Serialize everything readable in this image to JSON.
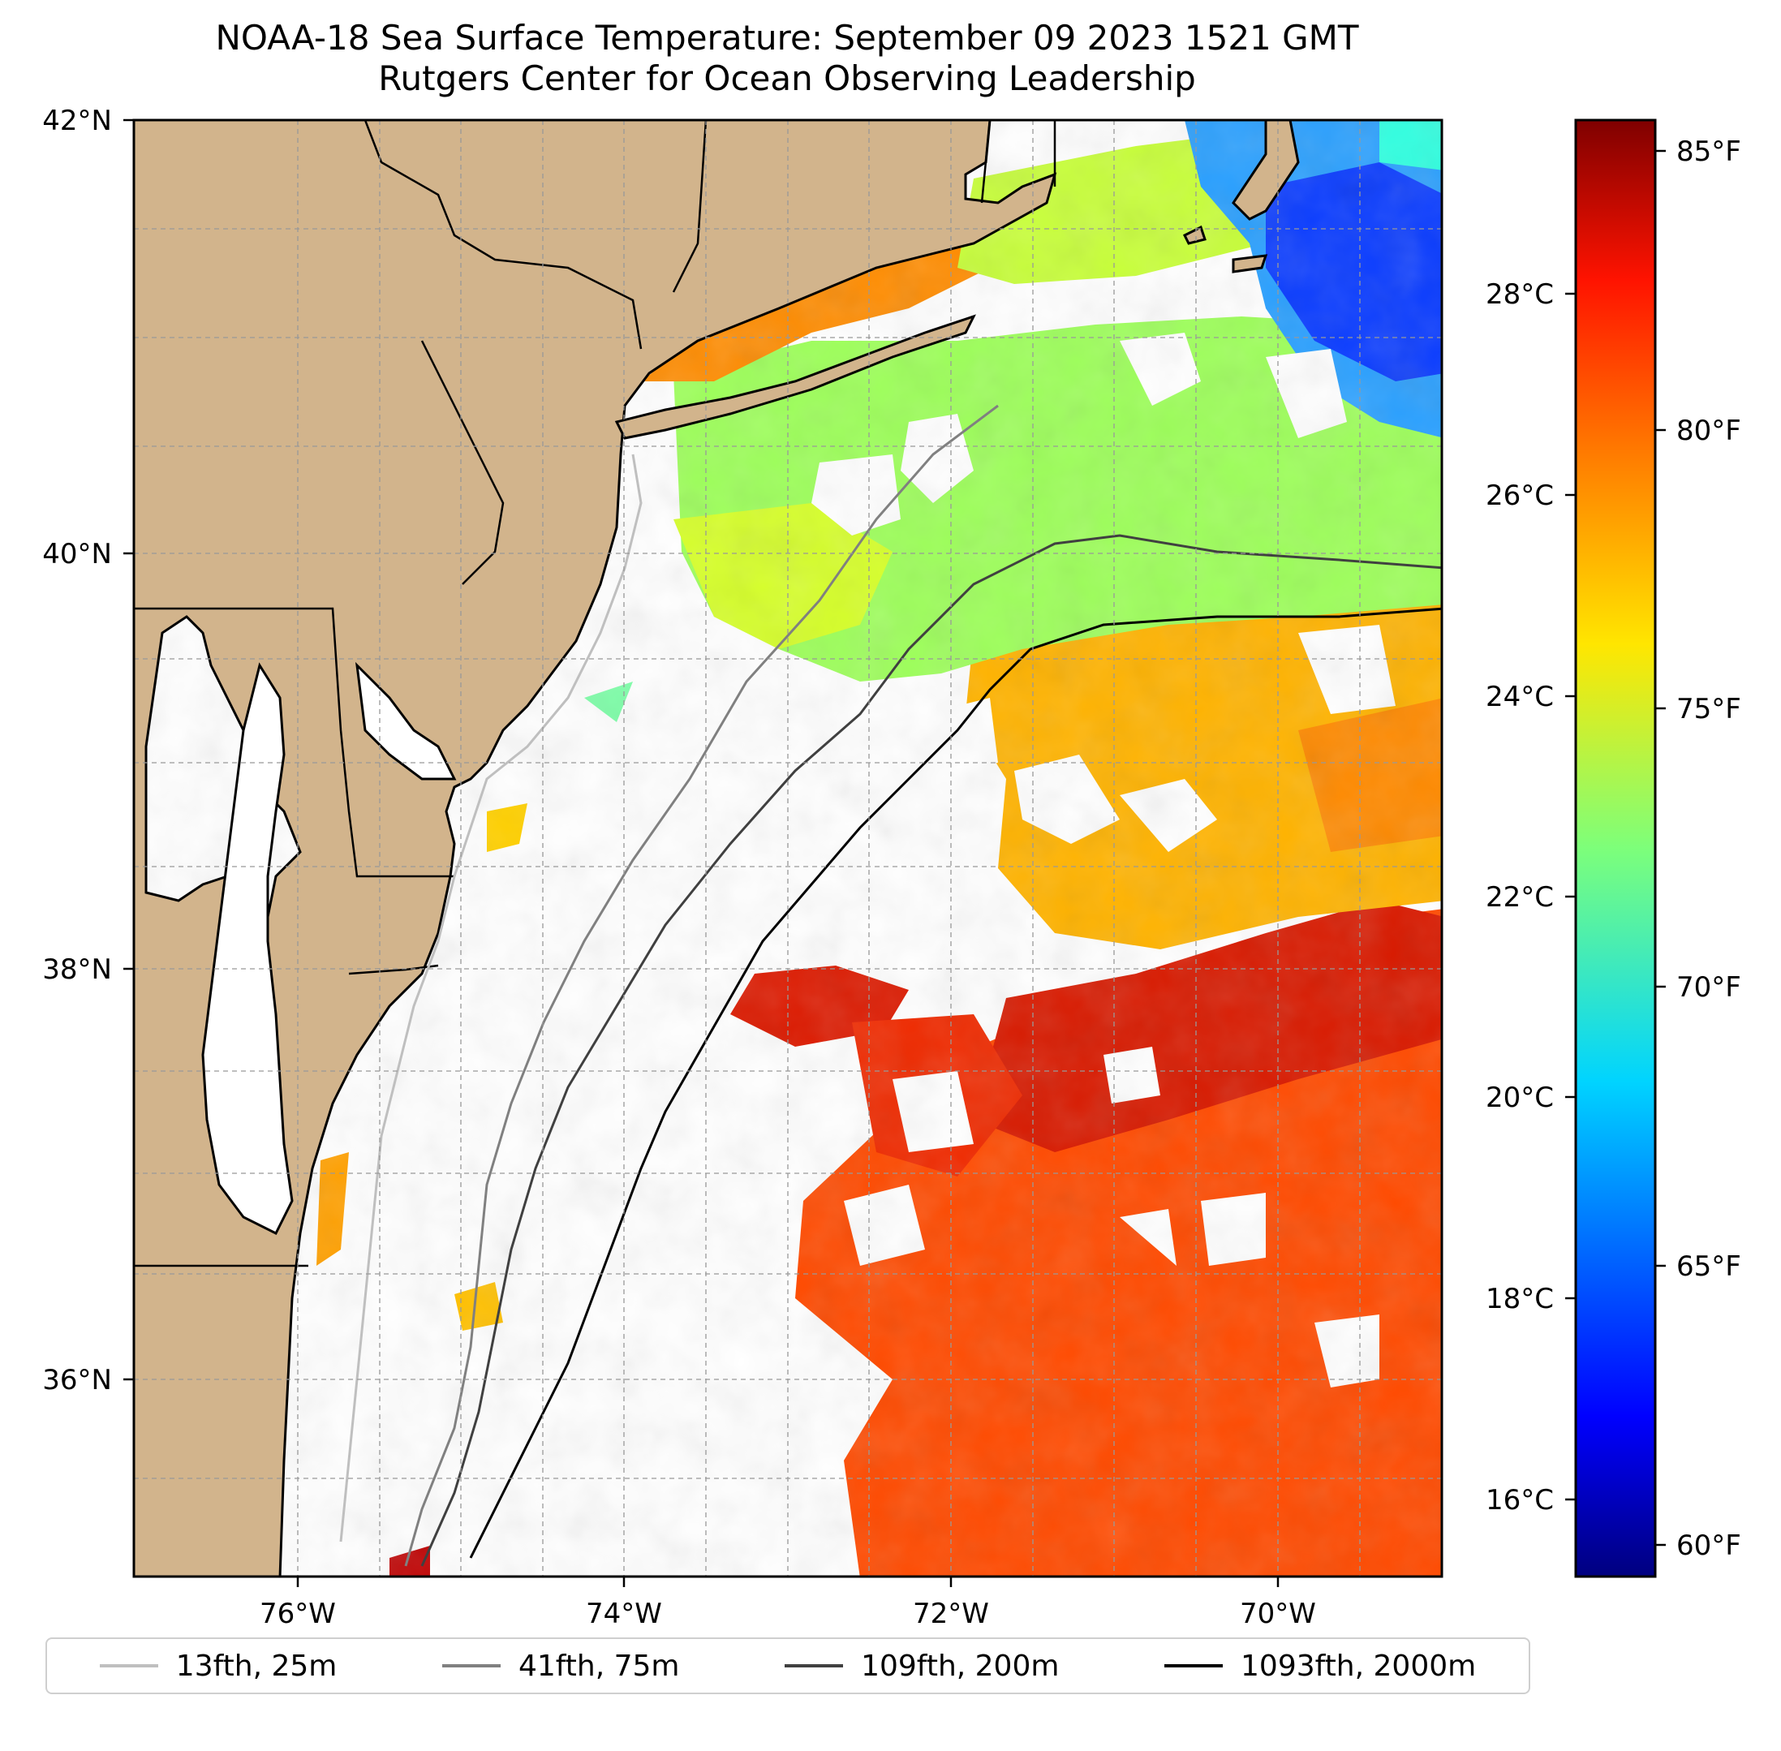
{
  "title": {
    "line1": "NOAA-18 Sea Surface Temperature: September 09 2023 1521 GMT",
    "line2": "Rutgers Center for Ocean Observing Leadership"
  },
  "map": {
    "lon_range": [
      -77,
      -69
    ],
    "lat_range": [
      35,
      42
    ],
    "x_ticks": [
      "76°W",
      "74°W",
      "72°W",
      "70°W"
    ],
    "y_ticks": [
      "42°N",
      "40°N",
      "38°N",
      "36°N"
    ],
    "land_color": "#d2b48c",
    "grid": "dashed",
    "isobaths": [
      {
        "label": "13fth, 25m",
        "color": "#bfbfbf"
      },
      {
        "label": "41fth, 75m",
        "color": "#808080"
      },
      {
        "label": "109fth, 200m",
        "color": "#404040"
      },
      {
        "label": "1093fth, 2000m",
        "color": "#000000"
      }
    ]
  },
  "colorbar": {
    "colormap": "jet",
    "celsius_ticks": [
      "28°C",
      "26°C",
      "24°C",
      "22°C",
      "20°C",
      "18°C",
      "16°C"
    ],
    "fahrenheit_ticks": [
      "85°F",
      "80°F",
      "75°F",
      "70°F",
      "65°F",
      "60°F"
    ],
    "range_f": [
      59.2,
      86.0
    ]
  },
  "legend": {
    "items": [
      {
        "label": "13fth, 25m",
        "color": "#bfbfbf"
      },
      {
        "label": "41fth, 75m",
        "color": "#808080"
      },
      {
        "label": "109fth, 200m",
        "color": "#404040"
      },
      {
        "label": "1093fth, 2000m",
        "color": "#000000"
      }
    ]
  }
}
